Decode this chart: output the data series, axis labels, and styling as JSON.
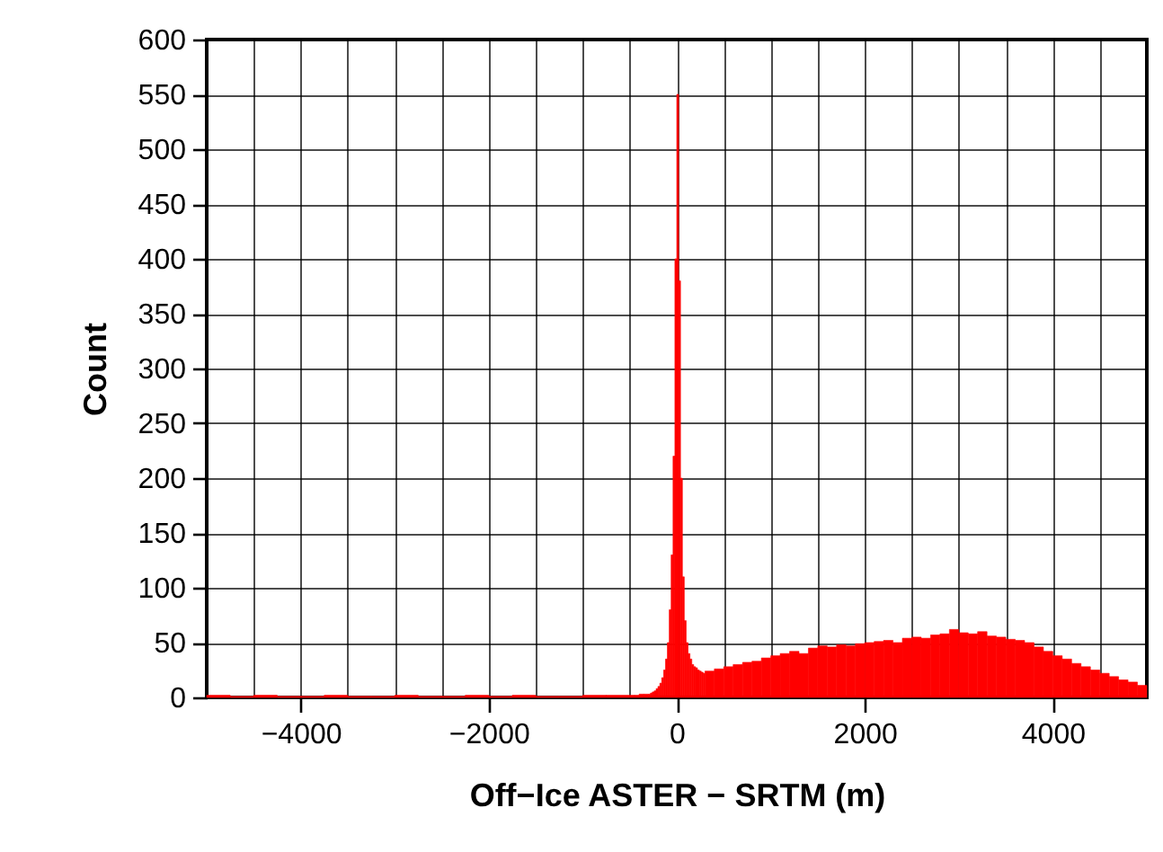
{
  "chart_data": {
    "type": "histogram",
    "xlabel": "Off−Ice ASTER − SRTM (m)",
    "ylabel": "Count",
    "color": "#ff0000",
    "bins": [
      -5000,
      -4750,
      -4500,
      -4250,
      -4000,
      -3750,
      -3500,
      -3250,
      -3000,
      -2750,
      -2500,
      -2250,
      -2000,
      -1750,
      -1500,
      -1250,
      -1000,
      -750,
      -500,
      -450,
      -400,
      -350,
      -300,
      -280,
      -260,
      -240,
      -220,
      -200,
      -180,
      -160,
      -140,
      -120,
      -100,
      -80,
      -60,
      -40,
      -20,
      0,
      20,
      40,
      60,
      80,
      100,
      120,
      140,
      160,
      180,
      200,
      220,
      240,
      260,
      280,
      300,
      400,
      500,
      600,
      700,
      800,
      900,
      1000,
      1100,
      1200,
      1300,
      1400,
      1500,
      1600,
      1700,
      1800,
      1900,
      2000,
      2100,
      2200,
      2300,
      2400,
      2500,
      2600,
      2700,
      2800,
      2900,
      3000,
      3100,
      3200,
      3300,
      3400,
      3500,
      3600,
      3700,
      3800,
      3900,
      4000,
      4100,
      4200,
      4300,
      4400,
      4500,
      4600,
      4700,
      4800,
      4900,
      5000
    ],
    "values": [
      2,
      1,
      2,
      1,
      1,
      2,
      1,
      1,
      2,
      1,
      1,
      2,
      1,
      2,
      1,
      1,
      2,
      2,
      2,
      2,
      3,
      3,
      3,
      4,
      5,
      6,
      8,
      10,
      13,
      18,
      25,
      35,
      50,
      80,
      130,
      220,
      400,
      550,
      380,
      200,
      110,
      70,
      50,
      40,
      35,
      30,
      28,
      27,
      25,
      24,
      23,
      22,
      24,
      26,
      28,
      30,
      32,
      33,
      36,
      38,
      40,
      42,
      40,
      45,
      47,
      46,
      48,
      47,
      49,
      50,
      51,
      52,
      50,
      54,
      55,
      54,
      57,
      58,
      62,
      59,
      58,
      60,
      56,
      55,
      53,
      52,
      50,
      46,
      42,
      38,
      35,
      31,
      28,
      25,
      22,
      19,
      16,
      14,
      11
    ],
    "xlim": [
      -5000,
      5000
    ],
    "ylim": [
      0,
      600
    ],
    "xticks": [
      {
        "value": -5000,
        "label": null
      },
      {
        "value": -4500,
        "label": null
      },
      {
        "value": -4000,
        "label": "−4000"
      },
      {
        "value": -3500,
        "label": null
      },
      {
        "value": -3000,
        "label": null
      },
      {
        "value": -2500,
        "label": null
      },
      {
        "value": -2000,
        "label": "−2000"
      },
      {
        "value": -1500,
        "label": null
      },
      {
        "value": -1000,
        "label": null
      },
      {
        "value": -500,
        "label": null
      },
      0,
      {
        "value": 500,
        "label": null
      },
      {
        "value": 1000,
        "label": null
      },
      {
        "value": 1500,
        "label": null
      },
      2000,
      {
        "value": 2500,
        "label": null
      },
      {
        "value": 3000,
        "label": null
      },
      {
        "value": 3500,
        "label": null
      },
      4000,
      {
        "value": 4500,
        "label": null
      },
      {
        "value": 5000,
        "label": null
      }
    ],
    "yticks": [
      0,
      50,
      100,
      150,
      200,
      250,
      300,
      350,
      400,
      450,
      500,
      550,
      600
    ],
    "grid": true
  }
}
